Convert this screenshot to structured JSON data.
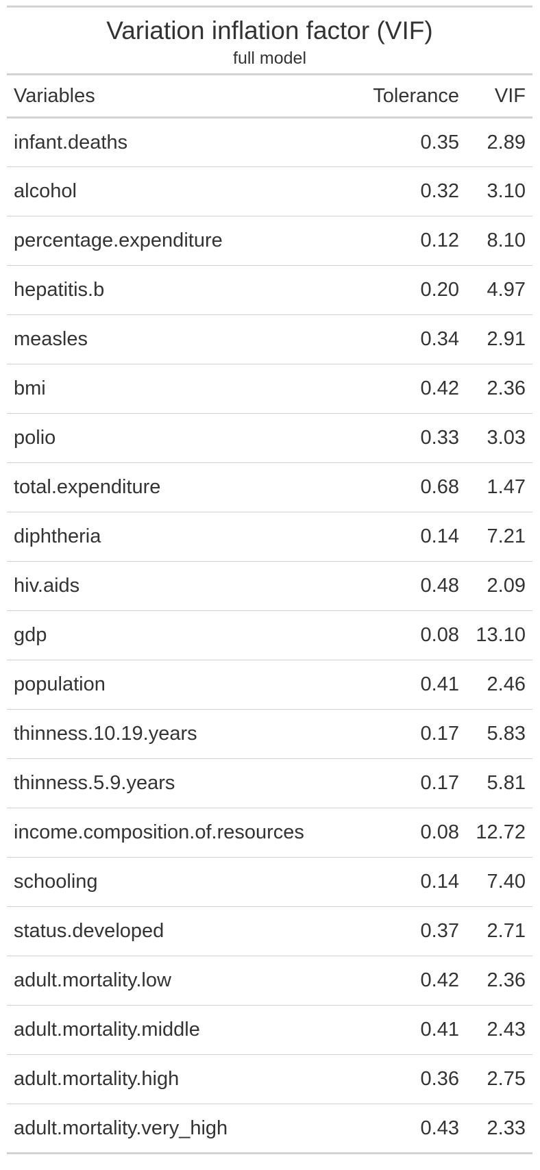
{
  "table": {
    "title": "Variation inflation factor (VIF)",
    "subtitle": "full model",
    "headers": {
      "variables": "Variables",
      "tolerance": "Tolerance",
      "vif": "VIF"
    },
    "rows": [
      {
        "variable": "infant.deaths",
        "tolerance": "0.35",
        "vif": "2.89"
      },
      {
        "variable": "alcohol",
        "tolerance": "0.32",
        "vif": "3.10"
      },
      {
        "variable": "percentage.expenditure",
        "tolerance": "0.12",
        "vif": "8.10"
      },
      {
        "variable": "hepatitis.b",
        "tolerance": "0.20",
        "vif": "4.97"
      },
      {
        "variable": "measles",
        "tolerance": "0.34",
        "vif": "2.91"
      },
      {
        "variable": "bmi",
        "tolerance": "0.42",
        "vif": "2.36"
      },
      {
        "variable": "polio",
        "tolerance": "0.33",
        "vif": "3.03"
      },
      {
        "variable": "total.expenditure",
        "tolerance": "0.68",
        "vif": "1.47"
      },
      {
        "variable": "diphtheria",
        "tolerance": "0.14",
        "vif": "7.21"
      },
      {
        "variable": "hiv.aids",
        "tolerance": "0.48",
        "vif": "2.09"
      },
      {
        "variable": "gdp",
        "tolerance": "0.08",
        "vif": "13.10"
      },
      {
        "variable": "population",
        "tolerance": "0.41",
        "vif": "2.46"
      },
      {
        "variable": "thinness.10.19.years",
        "tolerance": "0.17",
        "vif": "5.83"
      },
      {
        "variable": "thinness.5.9.years",
        "tolerance": "0.17",
        "vif": "5.81"
      },
      {
        "variable": "income.composition.of.resources",
        "tolerance": "0.08",
        "vif": "12.72"
      },
      {
        "variable": "schooling",
        "tolerance": "0.14",
        "vif": "7.40"
      },
      {
        "variable": "status.developed",
        "tolerance": "0.37",
        "vif": "2.71"
      },
      {
        "variable": "adult.mortality.low",
        "tolerance": "0.42",
        "vif": "2.36"
      },
      {
        "variable": "adult.mortality.middle",
        "tolerance": "0.41",
        "vif": "2.43"
      },
      {
        "variable": "adult.mortality.high",
        "tolerance": "0.36",
        "vif": "2.75"
      },
      {
        "variable": "adult.mortality.very_high",
        "tolerance": "0.43",
        "vif": "2.33"
      }
    ]
  }
}
